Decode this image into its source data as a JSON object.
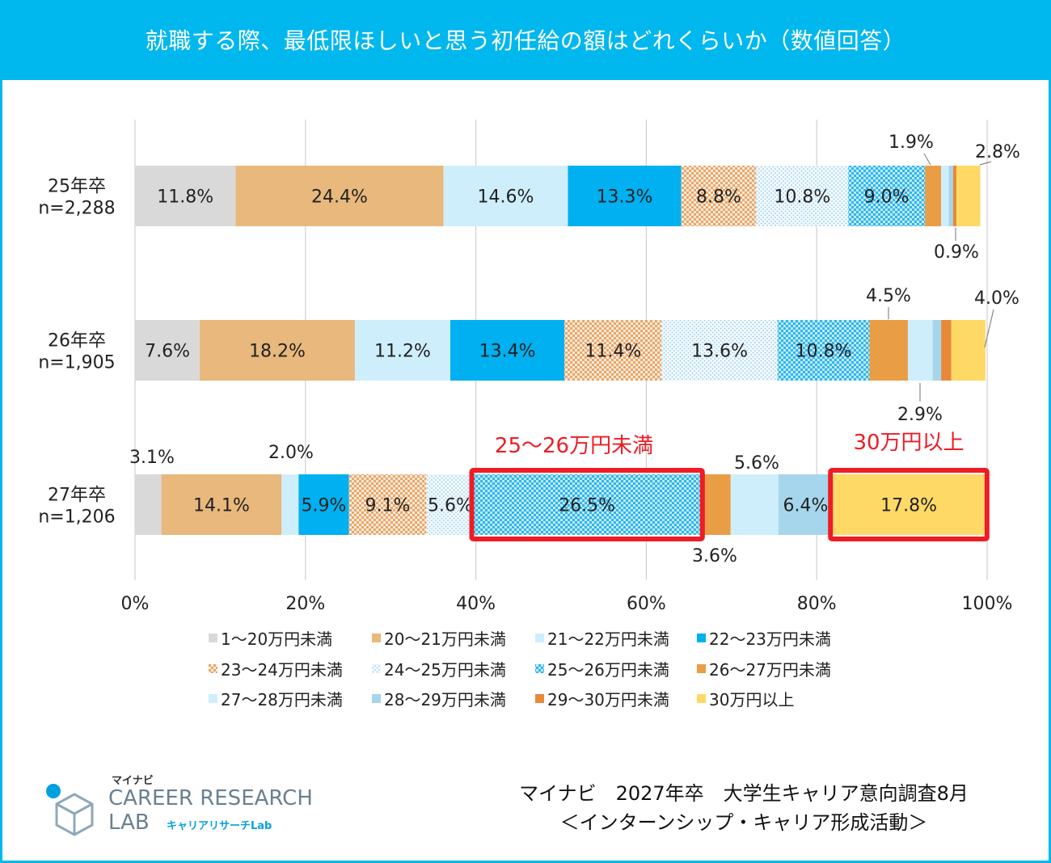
{
  "header": {
    "title": "就職する際、最低限ほしいと思う初任給の額はどれくらいか（数値回答）"
  },
  "colors": {
    "header_bg": "#00b7ee",
    "highlight_border": "#ee1c25",
    "annotation_text": "#ee1c25"
  },
  "chart_data": {
    "type": "bar",
    "orientation": "horizontal-stacked-100",
    "categories": [
      {
        "label": "25年卒",
        "n": "n=2,288"
      },
      {
        "label": "26年卒",
        "n": "n=1,905"
      },
      {
        "label": "27年卒",
        "n": "n=1,206"
      }
    ],
    "xlim": [
      0,
      100
    ],
    "x_ticks": [
      "0%",
      "20%",
      "40%",
      "60%",
      "80%",
      "100%"
    ],
    "grid": true,
    "legend_position": "bottom",
    "series": [
      {
        "name": "1～20万円未満",
        "color": "#d9d9d9",
        "pattern": "solid",
        "values": [
          11.8,
          7.6,
          3.1
        ],
        "labels": [
          "11.8%",
          "7.6%",
          "3.1%"
        ]
      },
      {
        "name": "20～21万円未満",
        "color": "#e8b87c",
        "pattern": "solid",
        "values": [
          24.4,
          18.2,
          14.1
        ],
        "labels": [
          "24.4%",
          "18.2%",
          "14.1%"
        ]
      },
      {
        "name": "21～22万円未満",
        "color": "#cfeefc",
        "pattern": "solid",
        "values": [
          14.6,
          11.2,
          2.0
        ],
        "labels": [
          "14.6%",
          "11.2%",
          "2.0%"
        ]
      },
      {
        "name": "22～23万円未満",
        "color": "#00b0f0",
        "pattern": "solid",
        "values": [
          13.3,
          13.4,
          5.9
        ],
        "labels": [
          "13.3%",
          "13.4%",
          "5.9%"
        ]
      },
      {
        "name": "23～24万円未満",
        "color": "#f2c9a0",
        "pattern": "check-orange",
        "values": [
          8.8,
          11.4,
          9.1
        ],
        "labels": [
          "8.8%",
          "11.4%",
          "9.1%"
        ]
      },
      {
        "name": "24～25万円未満",
        "color": "#eef7fd",
        "pattern": "dots-blue",
        "values": [
          10.8,
          13.6,
          5.6
        ],
        "labels": [
          "10.8%",
          "13.6%",
          "5.6%"
        ]
      },
      {
        "name": "25～26万円未満",
        "color": "#6fd3f5",
        "pattern": "check-blue",
        "values": [
          9.0,
          10.8,
          26.5
        ],
        "labels": [
          "9.0%",
          "10.8%",
          "26.5%"
        ]
      },
      {
        "name": "26～27万円未満",
        "color": "#e99d45",
        "pattern": "solid",
        "values": [
          1.9,
          4.5,
          3.6
        ],
        "labels": [
          "1.9%",
          "4.5%",
          "3.6%"
        ]
      },
      {
        "name": "27～28万円未満",
        "color": "#cfeefc",
        "pattern": "solid",
        "values": [
          0.9,
          2.9,
          5.6
        ],
        "labels": [
          "0.9%",
          "2.9%",
          "5.6%"
        ]
      },
      {
        "name": "28～29万円未満",
        "color": "#a6d6ec",
        "pattern": "solid",
        "values": [
          0.5,
          1.0,
          6.4
        ],
        "labels": [
          "",
          "",
          "6.4%"
        ]
      },
      {
        "name": "29～30万円未満",
        "color": "#e8893a",
        "pattern": "solid",
        "values": [
          0.4,
          1.2,
          0.0
        ],
        "labels": [
          "",
          "",
          ""
        ]
      },
      {
        "name": "30万円以上",
        "color": "#ffd966",
        "pattern": "solid",
        "values": [
          2.8,
          4.0,
          17.8
        ],
        "labels": [
          "2.8%",
          "4.0%",
          "17.8%"
        ]
      }
    ],
    "highlights": [
      {
        "category": 2,
        "series": 6,
        "text": "25～26万円未満"
      },
      {
        "category": 2,
        "series": 11,
        "text": "30万円以上"
      }
    ]
  },
  "source": {
    "line1": "マイナビ　2027年卒　大学生キャリア意向調査8月",
    "line2": "＜インターンシップ・キャリア形成活動＞"
  },
  "logo": {
    "small": "マイナビ",
    "line1": "CAREER RESEARCH",
    "line2": "LAB",
    "sub": "キャリアリサーチLab"
  }
}
